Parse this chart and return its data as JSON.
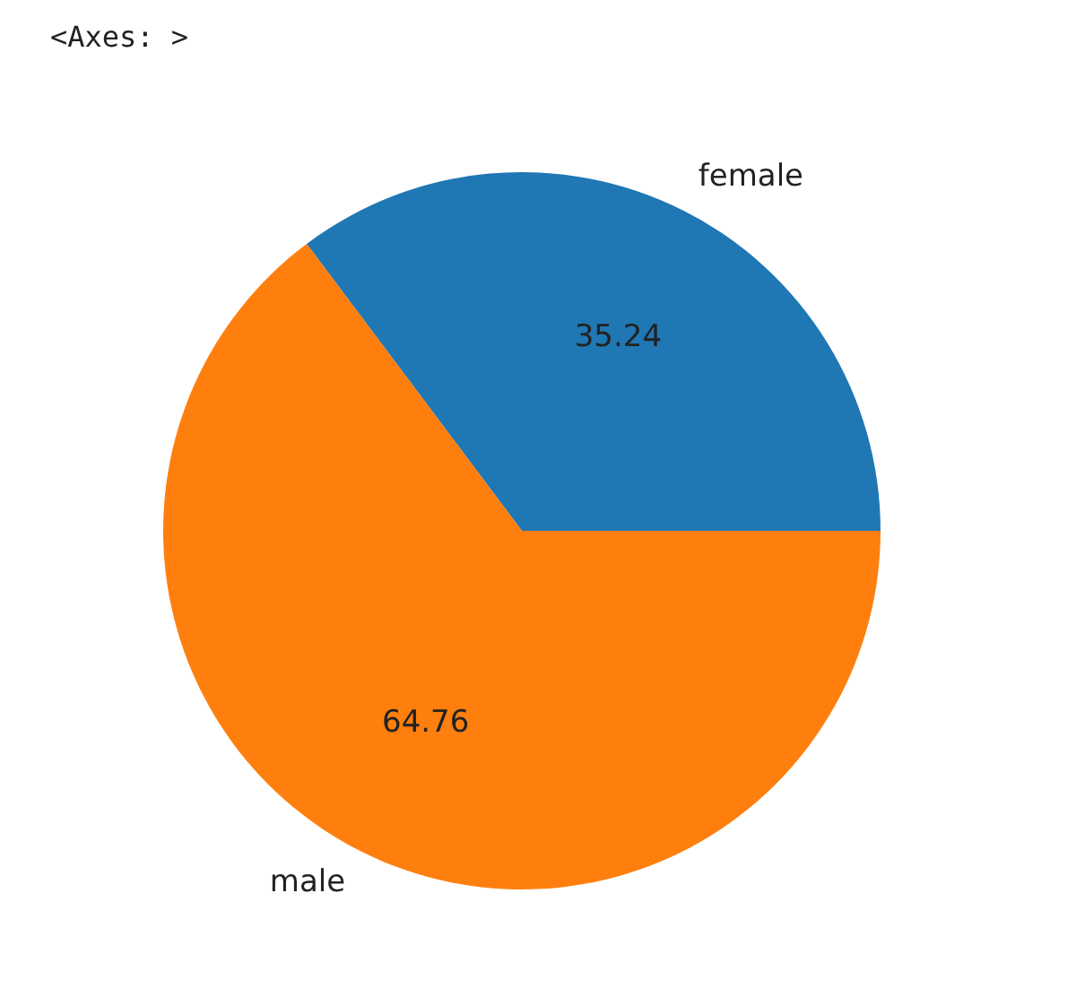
{
  "chart_data": {
    "type": "pie",
    "annotations": [
      "<Axes: >"
    ],
    "categories": [
      "female",
      "male"
    ],
    "values": [
      35.24,
      64.76
    ],
    "colors": [
      "#1f77b4",
      "#ff7f0e"
    ],
    "data_labels": true,
    "legend": false
  }
}
